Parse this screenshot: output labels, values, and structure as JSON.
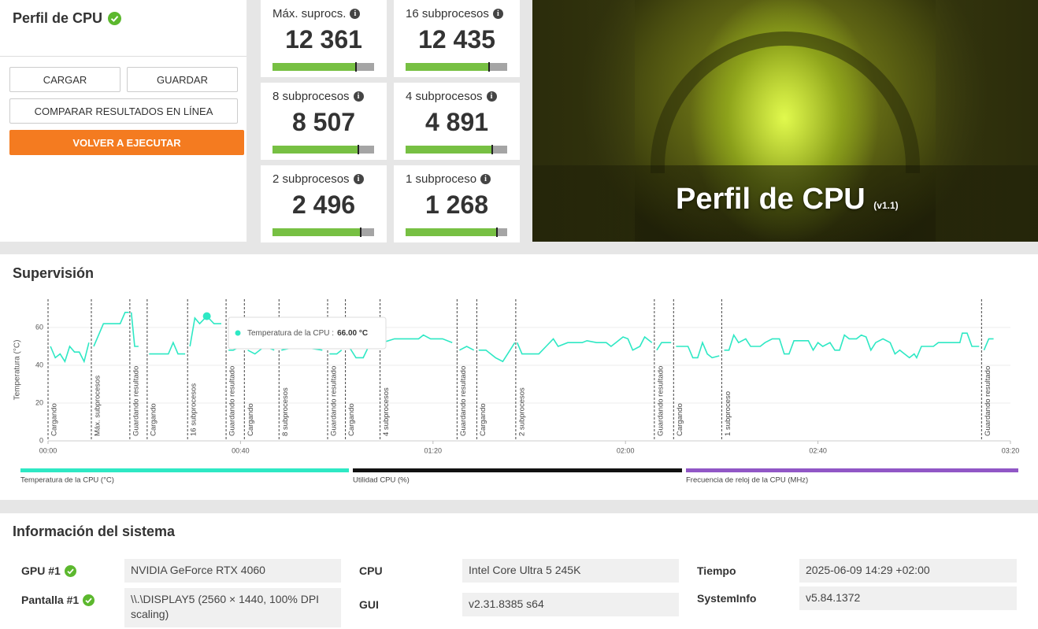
{
  "cpu_panel": {
    "title": "Perfil de CPU",
    "buttons": [
      "CARGAR",
      "GUARDAR",
      "COMPARAR RESULTADOS EN LÍNEA",
      "VOLVER A EJECUTAR"
    ]
  },
  "scores": [
    {
      "label": "Máx. suprocs.",
      "value": "12 361"
    },
    {
      "label": "16 subprocesos",
      "value": "12 435"
    },
    {
      "label": "8 subprocesos",
      "value": "8 507"
    },
    {
      "label": "4 subprocesos",
      "value": "4 891"
    },
    {
      "label": "2 subprocesos",
      "value": "2 496"
    },
    {
      "label": "1 subproceso",
      "value": "1 268"
    }
  ],
  "hero": {
    "title": "Perfil de CPU",
    "version": "(v1.1)"
  },
  "monitoring": {
    "title": "Supervisión",
    "type": "line",
    "y_label": "Temperatura (°C)",
    "xlim": [
      0,
      200
    ],
    "xticks": [
      {
        "value": 0,
        "label": "00:00"
      },
      {
        "value": 40,
        "label": "00:40"
      },
      {
        "value": 80,
        "label": "01:20"
      },
      {
        "value": 120,
        "label": "02:00"
      },
      {
        "value": 160,
        "label": "02:40"
      },
      {
        "value": 200,
        "label": "03:20"
      }
    ],
    "ylim": [
      0,
      75
    ],
    "yticks": [
      0,
      20,
      40,
      60
    ],
    "grid": true,
    "series": [
      {
        "name": "Temperatura de la CPU (°C)",
        "color": "#2ee8c4",
        "x": [
          0.5,
          1.5,
          2.5,
          3.5,
          4.5,
          5.5,
          6.5,
          7.5,
          8.5,
          9,
          9.5,
          10.5,
          11.5,
          13,
          15,
          16,
          16.8,
          17,
          17.3,
          18,
          18.8,
          20.6,
          21,
          23,
          25,
          26,
          27,
          28.5,
          29,
          29.5,
          30.5,
          31.5,
          33,
          34.5,
          36,
          37,
          37.5,
          38.5,
          40,
          40.8,
          41.5,
          43,
          45,
          47,
          48,
          48.5,
          52,
          57,
          58.1,
          58.5,
          60,
          61,
          61.8,
          62.5,
          64,
          65.5,
          67,
          68.5,
          69,
          69.5,
          72,
          75,
          77,
          78,
          79.5,
          82,
          84,
          85,
          85.5,
          87,
          88.5,
          89.1,
          89.5,
          91,
          93,
          94.5,
          96,
          97,
          97.2,
          97.5,
          98.5,
          102,
          103.5,
          105,
          106,
          108,
          111,
          112,
          114,
          116,
          117,
          118,
          119.5,
          120.5,
          121.5,
          123,
          124,
          125.5,
          126,
          126.5,
          127.5,
          129.5,
          130,
          130.5,
          133,
          134,
          135,
          136,
          137,
          138,
          139.5,
          140,
          140.5,
          141.5,
          142.5,
          143.5,
          145,
          146,
          148,
          149,
          150.5,
          152,
          153,
          154,
          155,
          158,
          159,
          160,
          161,
          162.5,
          163.5,
          164.5,
          165.5,
          166.5,
          168,
          169,
          170,
          171,
          172,
          173.5,
          175,
          176,
          177,
          178,
          179,
          180,
          180.5,
          181.5,
          184,
          185,
          188,
          189.5,
          190,
          191,
          192,
          193.5,
          194,
          194.5,
          195.5,
          196.5
        ],
        "values": [
          50,
          44,
          46,
          42,
          50,
          47,
          47,
          42,
          52,
          null,
          50,
          56,
          62,
          62,
          62,
          68,
          68,
          null,
          68,
          50,
          50,
          null,
          46,
          46,
          46,
          52,
          46,
          46,
          null,
          50,
          65,
          62,
          66,
          62,
          62,
          null,
          48,
          48,
          50,
          null,
          48,
          46,
          50,
          48,
          null,
          48,
          50,
          48,
          null,
          46,
          46,
          48,
          null,
          50,
          44,
          44,
          52,
          50,
          null,
          52,
          54,
          54,
          54,
          56,
          54,
          54,
          52,
          null,
          48,
          50,
          48,
          null,
          48,
          48,
          44,
          42,
          48,
          52,
          null,
          52,
          46,
          46,
          50,
          54,
          50,
          52,
          52,
          53,
          52,
          52,
          50,
          52,
          55,
          54,
          48,
          50,
          55,
          52,
          null,
          48,
          52,
          52,
          null,
          50,
          50,
          44,
          44,
          52,
          46,
          44,
          45,
          null,
          48,
          48,
          56,
          52,
          54,
          50,
          50,
          52,
          54,
          54,
          46,
          46,
          53,
          53,
          48,
          52,
          50,
          52,
          48,
          48,
          56,
          54,
          54,
          56,
          55,
          48,
          52,
          54,
          52,
          46,
          48,
          46,
          44,
          46,
          44,
          50,
          50,
          52,
          52,
          52,
          57,
          57,
          50,
          50,
          null,
          48,
          54,
          54
        ]
      },
      {
        "name": "Utilidad CPU (%)",
        "color": "#111111"
      },
      {
        "name": "Frecuencia de reloj de la CPU (MHz)",
        "color": "#9157c6"
      }
    ],
    "events": [
      {
        "x": 0,
        "label": "Cargando"
      },
      {
        "x": 9,
        "label": "Máx. subprocesos"
      },
      {
        "x": 17,
        "label": "Guardando resultado"
      },
      {
        "x": 20.6,
        "label": "Cargando"
      },
      {
        "x": 29,
        "label": "16 subprocesos"
      },
      {
        "x": 37,
        "label": "Guardando resultado"
      },
      {
        "x": 40.8,
        "label": "Cargando"
      },
      {
        "x": 48,
        "label": "8 subprocesos"
      },
      {
        "x": 58.1,
        "label": "Guardando resultado"
      },
      {
        "x": 61.8,
        "label": "Cargando"
      },
      {
        "x": 69,
        "label": "4 subprocesos"
      },
      {
        "x": 85,
        "label": "Guardando resultado"
      },
      {
        "x": 89.1,
        "label": "Cargando"
      },
      {
        "x": 97.2,
        "label": "2 subprocesos"
      },
      {
        "x": 126,
        "label": "Guardando resultado"
      },
      {
        "x": 130,
        "label": "Cargando"
      },
      {
        "x": 140,
        "label": "1 subproceso"
      },
      {
        "x": 194,
        "label": "Guardando resultado"
      }
    ],
    "tooltip": {
      "label": "Temperatura de la CPU :",
      "x": 33,
      "value": 66,
      "value_label": "66.00 °C"
    }
  },
  "info": {
    "title": "Información del sistema",
    "rows": [
      {
        "label": "GPU #1",
        "value": "NVIDIA GeForce RTX 4060"
      },
      {
        "label": "Pantalla #1",
        "value": "\\\\.\\DISPLAY5 (2560 × 1440, 100% DPI scaling)"
      },
      {
        "label": "CPU",
        "value": "Intel Core Ultra 5 245K"
      },
      {
        "label": "GUI",
        "value": "v2.31.8385 s64"
      },
      {
        "label": "Tiempo",
        "value": "2025-06-09 14:29 +02:00"
      },
      {
        "label": "SystemInfo",
        "value": "v5.84.1372"
      }
    ]
  }
}
